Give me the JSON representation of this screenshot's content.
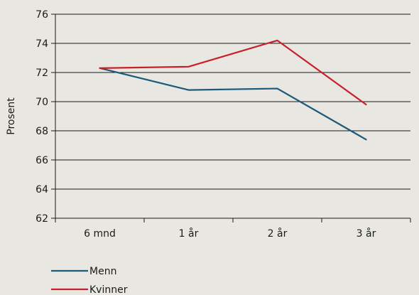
{
  "chart_data": {
    "type": "line",
    "title": "",
    "xlabel": "",
    "ylabel": "Prosent",
    "categories": [
      "6 mnd",
      "1 år",
      "2 år",
      "3 år"
    ],
    "ylim": [
      62,
      76
    ],
    "yticks": [
      62,
      64,
      66,
      68,
      70,
      72,
      74,
      76
    ],
    "grid": true,
    "legend_position": "bottom-left",
    "series": [
      {
        "name": "Menn",
        "color": "#1b5a7a",
        "values": [
          72.3,
          70.8,
          70.9,
          67.4
        ]
      },
      {
        "name": "Kvinner",
        "color": "#c8202a",
        "values": [
          72.3,
          72.4,
          74.2,
          69.8
        ]
      }
    ]
  }
}
